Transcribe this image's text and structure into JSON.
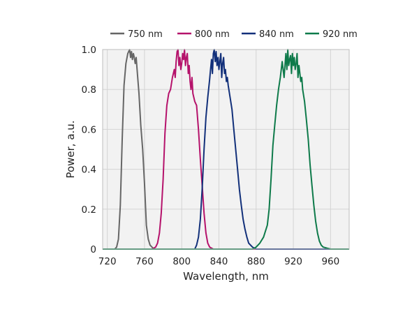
{
  "chart_data": {
    "type": "line",
    "title": "",
    "xlabel": "Wavelength, nm",
    "ylabel": "Power, a.u.",
    "xlim": [
      715,
      980
    ],
    "ylim": [
      0,
      1.0
    ],
    "xticks": [
      720,
      760,
      800,
      840,
      880,
      920,
      960
    ],
    "yticks": [
      0,
      0.2,
      0.4,
      0.6,
      0.8,
      1.0
    ],
    "ytick_labels": [
      "0",
      "0.2",
      "0.4",
      "0.6",
      "0.8",
      "1.0"
    ],
    "grid": true,
    "legend_position": "top",
    "plot_background": "#f2f2f2",
    "series": [
      {
        "name": "750 nm",
        "color": "#666666",
        "x": [
          715,
          728,
          730,
          732,
          734,
          736,
          738,
          740,
          742,
          744,
          745,
          746,
          747,
          748,
          749,
          750,
          751,
          752,
          754,
          756,
          758,
          760,
          762,
          764,
          766,
          768,
          770,
          980
        ],
        "y": [
          0,
          0,
          0.01,
          0.05,
          0.22,
          0.55,
          0.82,
          0.93,
          0.98,
          1.0,
          0.96,
          0.99,
          0.95,
          0.98,
          0.96,
          0.93,
          0.96,
          0.9,
          0.78,
          0.62,
          0.5,
          0.33,
          0.12,
          0.05,
          0.02,
          0.01,
          0,
          0
        ]
      },
      {
        "name": "800 nm",
        "color": "#b5126b",
        "x": [
          715,
          768,
          772,
          774,
          776,
          778,
          780,
          782,
          784,
          786,
          788,
          790,
          792,
          793,
          794,
          795,
          796,
          797,
          798,
          799,
          800,
          801,
          802,
          803,
          804,
          805,
          806,
          807,
          808,
          809,
          810,
          811,
          812,
          814,
          816,
          818,
          820,
          822,
          824,
          826,
          828,
          830,
          832,
          834,
          836,
          980
        ],
        "y": [
          0,
          0,
          0.01,
          0.03,
          0.08,
          0.18,
          0.35,
          0.58,
          0.72,
          0.78,
          0.8,
          0.86,
          0.9,
          0.86,
          0.94,
          0.99,
          1.0,
          0.92,
          0.96,
          0.9,
          0.93,
          0.98,
          0.95,
          1.0,
          0.92,
          0.96,
          0.98,
          0.88,
          0.92,
          0.84,
          0.8,
          0.86,
          0.78,
          0.74,
          0.72,
          0.6,
          0.45,
          0.32,
          0.18,
          0.08,
          0.03,
          0.01,
          0.005,
          0,
          0,
          0
        ]
      },
      {
        "name": "840 nm",
        "color": "#12307a",
        "x": [
          715,
          814,
          816,
          818,
          820,
          822,
          824,
          826,
          828,
          830,
          831,
          832,
          833,
          834,
          835,
          836,
          837,
          838,
          839,
          840,
          841,
          842,
          843,
          844,
          845,
          846,
          847,
          848,
          849,
          850,
          852,
          854,
          856,
          858,
          860,
          862,
          864,
          866,
          868,
          870,
          872,
          874,
          876,
          878,
          880,
          980
        ],
        "y": [
          0,
          0,
          0.02,
          0.06,
          0.15,
          0.3,
          0.5,
          0.66,
          0.76,
          0.85,
          0.9,
          0.95,
          0.88,
          0.98,
          1.0,
          0.94,
          0.99,
          0.92,
          0.96,
          0.9,
          0.94,
          0.98,
          0.86,
          0.93,
          0.96,
          0.88,
          0.9,
          0.84,
          0.86,
          0.82,
          0.76,
          0.7,
          0.6,
          0.5,
          0.4,
          0.3,
          0.22,
          0.15,
          0.1,
          0.06,
          0.03,
          0.02,
          0.01,
          0.005,
          0,
          0
        ]
      },
      {
        "name": "920 nm",
        "color": "#0e7a4a",
        "x": [
          715,
          876,
          880,
          884,
          888,
          892,
          894,
          896,
          898,
          900,
          902,
          904,
          906,
          908,
          910,
          912,
          913,
          914,
          915,
          916,
          917,
          918,
          919,
          920,
          921,
          922,
          923,
          924,
          925,
          926,
          927,
          928,
          929,
          930,
          932,
          934,
          936,
          938,
          940,
          942,
          944,
          946,
          948,
          950,
          952,
          956,
          960,
          980
        ],
        "y": [
          0,
          0,
          0.01,
          0.03,
          0.06,
          0.12,
          0.2,
          0.35,
          0.52,
          0.62,
          0.72,
          0.8,
          0.86,
          0.94,
          0.86,
          0.98,
          0.9,
          1.0,
          0.92,
          0.95,
          0.97,
          0.88,
          0.98,
          0.92,
          0.96,
          0.9,
          0.93,
          0.98,
          0.86,
          0.92,
          0.88,
          0.84,
          0.86,
          0.8,
          0.74,
          0.65,
          0.55,
          0.42,
          0.32,
          0.22,
          0.14,
          0.08,
          0.04,
          0.02,
          0.01,
          0.005,
          0,
          0
        ]
      }
    ]
  }
}
